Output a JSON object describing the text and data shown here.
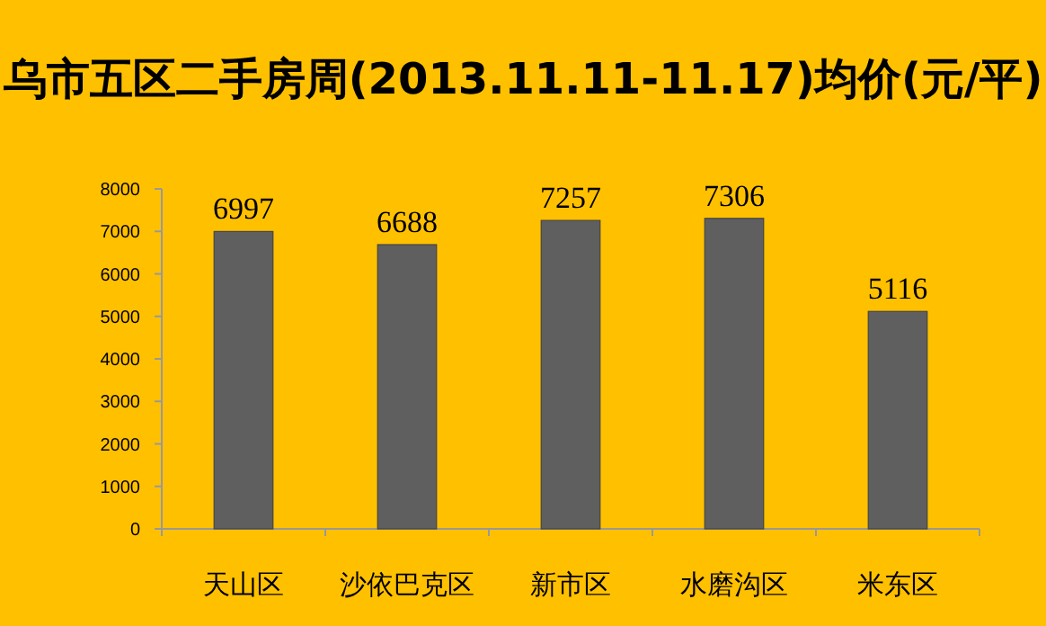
{
  "chart_data": {
    "type": "bar",
    "title": "乌市五区二手房周(2013.11.11-11.17)均价(元/平)",
    "categories": [
      "天山区",
      "沙依巴克区",
      "新市区",
      "水磨沟区",
      "米东区"
    ],
    "values": [
      6997,
      6688,
      7257,
      7306,
      5116
    ],
    "color": "#5f5f5f",
    "ylim": [
      0,
      8000
    ],
    "yticks": [
      0,
      1000,
      2000,
      3000,
      4000,
      5000,
      6000,
      7000,
      8000
    ],
    "grid": false,
    "data_labels": true
  }
}
